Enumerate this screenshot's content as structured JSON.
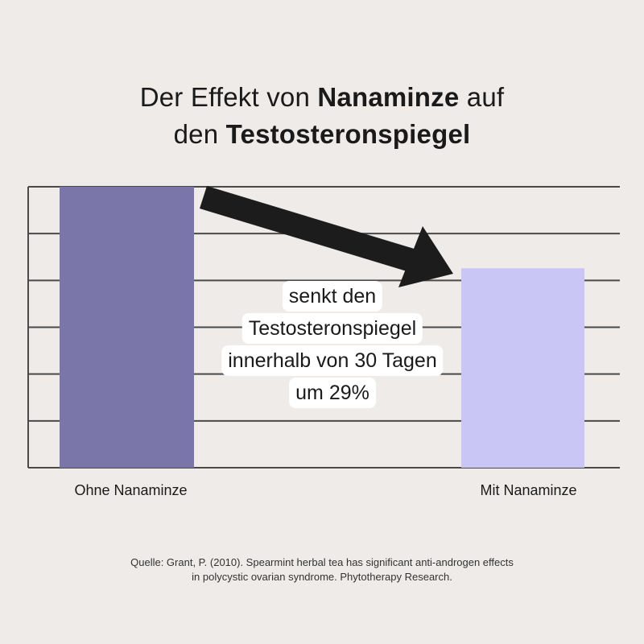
{
  "title": {
    "part1": "Der Effekt von ",
    "bold1": "Nanaminze",
    "part2": " auf",
    "part3": "den ",
    "bold2": "Testosteronspiegel"
  },
  "chart_data": {
    "type": "bar",
    "categories": [
      "Ohne Nanaminze",
      "Mit Nanaminze"
    ],
    "values": [
      100,
      71
    ],
    "colors": [
      "#7b76aa",
      "#c9c6f5"
    ],
    "ylim": [
      0,
      100
    ],
    "grid": true,
    "annotation": {
      "arrow": "from first bar down to second bar",
      "lines": [
        "senkt den",
        "Testosteronspiegel",
        "innerhalb von 30 Tagen",
        "um 29%"
      ]
    }
  },
  "source": {
    "line1": "Quelle: Grant, P. (2010). Spearmint herbal tea has significant anti-androgen effects",
    "line2": "in polycystic ovarian syndrome. Phytotherapy Research."
  }
}
